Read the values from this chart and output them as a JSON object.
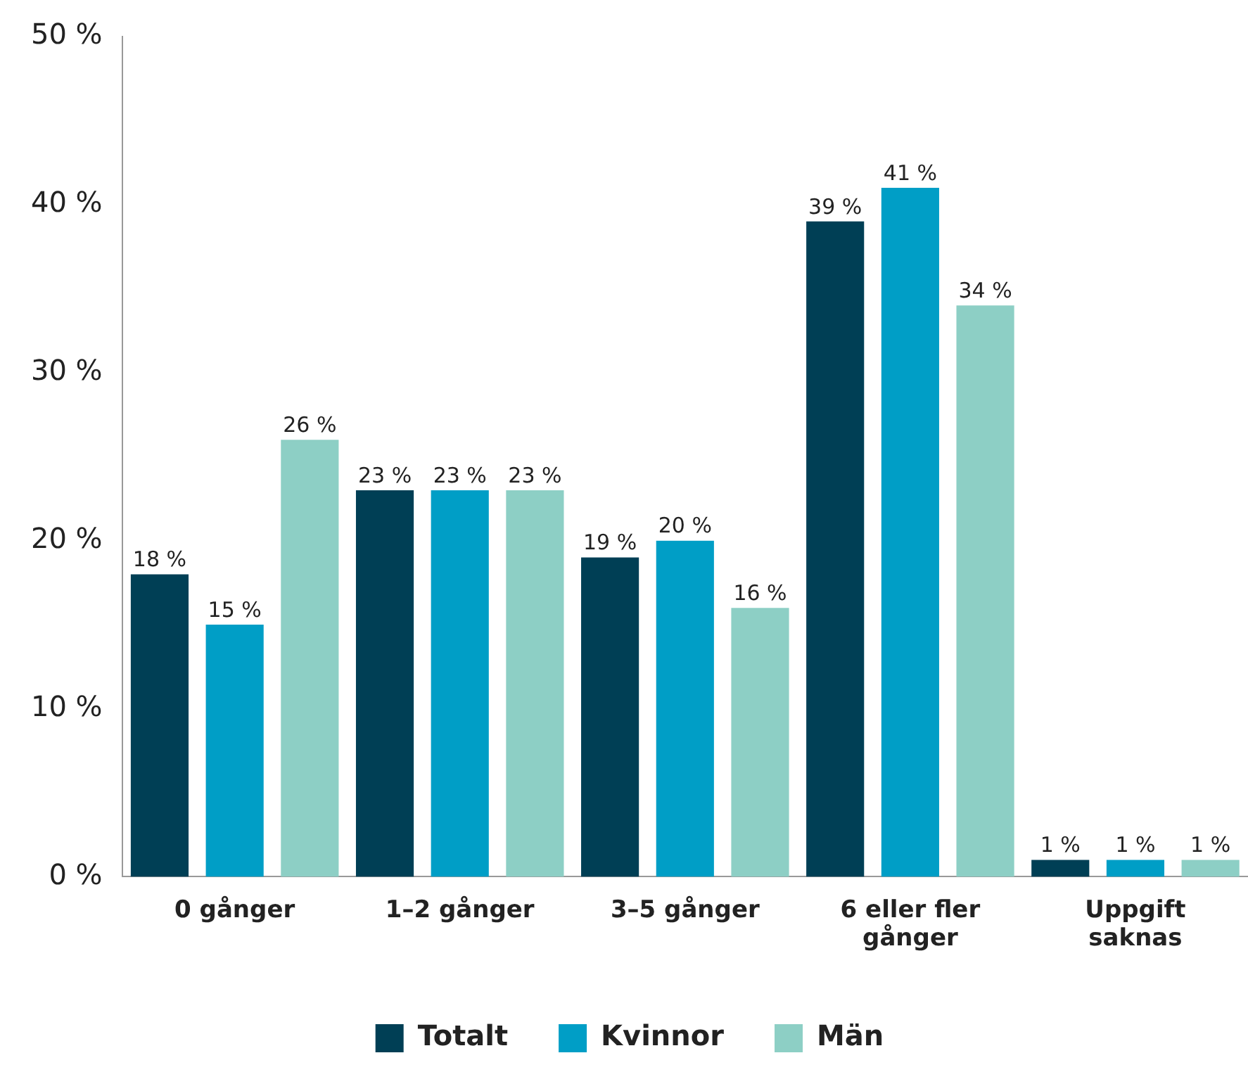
{
  "chart_data": {
    "type": "bar",
    "categories": [
      "0 gånger",
      "1–2 gånger",
      "3–5 gånger",
      "6 eller fler gånger",
      "Uppgift saknas"
    ],
    "series": [
      {
        "name": "Totalt",
        "color": "#003f55",
        "values": [
          18,
          23,
          19,
          39,
          1
        ],
        "value_labels": [
          "18 %",
          "23 %",
          "19 %",
          "39 %",
          "1 %"
        ]
      },
      {
        "name": "Kvinnor",
        "color": "#009ec6",
        "values": [
          15,
          23,
          20,
          41,
          1
        ],
        "value_labels": [
          "15 %",
          "23 %",
          "20 %",
          "41 %",
          "1 %"
        ]
      },
      {
        "name": "Män",
        "color": "#8dcfc5",
        "values": [
          26,
          23,
          16,
          34,
          1
        ],
        "value_labels": [
          "26 %",
          "23 %",
          "16 %",
          "34 %",
          "1 %"
        ]
      }
    ],
    "ylim": [
      0,
      50
    ],
    "yticks": [
      {
        "value": 0,
        "label": "0 %"
      },
      {
        "value": 10,
        "label": "10 %"
      },
      {
        "value": 20,
        "label": "20 %"
      },
      {
        "value": 30,
        "label": "30 %"
      },
      {
        "value": 40,
        "label": "40 %"
      },
      {
        "value": 50,
        "label": "50 %"
      }
    ],
    "grid": false,
    "legend": "bottom"
  }
}
